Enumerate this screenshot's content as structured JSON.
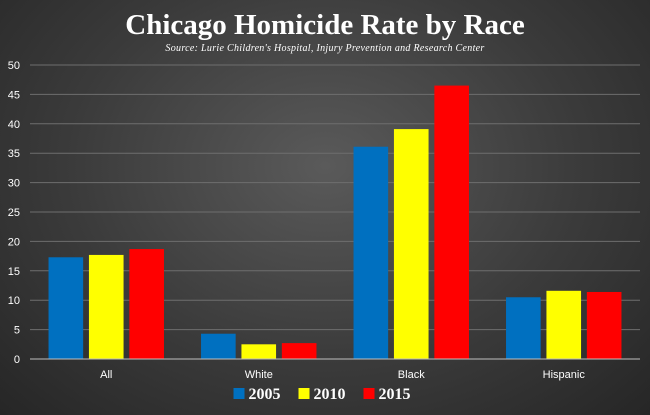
{
  "chart_data": {
    "type": "bar",
    "title": "Chicago Homicide Rate by Race",
    "subtitle": "Source: Lurie Children's Hospital, Injury Prevention and Research Center",
    "categories": [
      "All",
      "White",
      "Black",
      "Hispanic"
    ],
    "series": [
      {
        "name": "2005",
        "color": "#0070c0",
        "values": [
          17.3,
          4.3,
          36.1,
          10.5
        ]
      },
      {
        "name": "2010",
        "color": "#ffff00",
        "values": [
          17.7,
          2.5,
          39.1,
          11.6
        ]
      },
      {
        "name": "2015",
        "color": "#ff0000",
        "values": [
          18.7,
          2.7,
          46.5,
          11.4
        ]
      }
    ],
    "ylim": [
      0,
      50
    ],
    "yticks": [
      0,
      5,
      10,
      15,
      20,
      25,
      30,
      35,
      40,
      45,
      50
    ],
    "grid": true,
    "legend_position": "bottom-center"
  }
}
